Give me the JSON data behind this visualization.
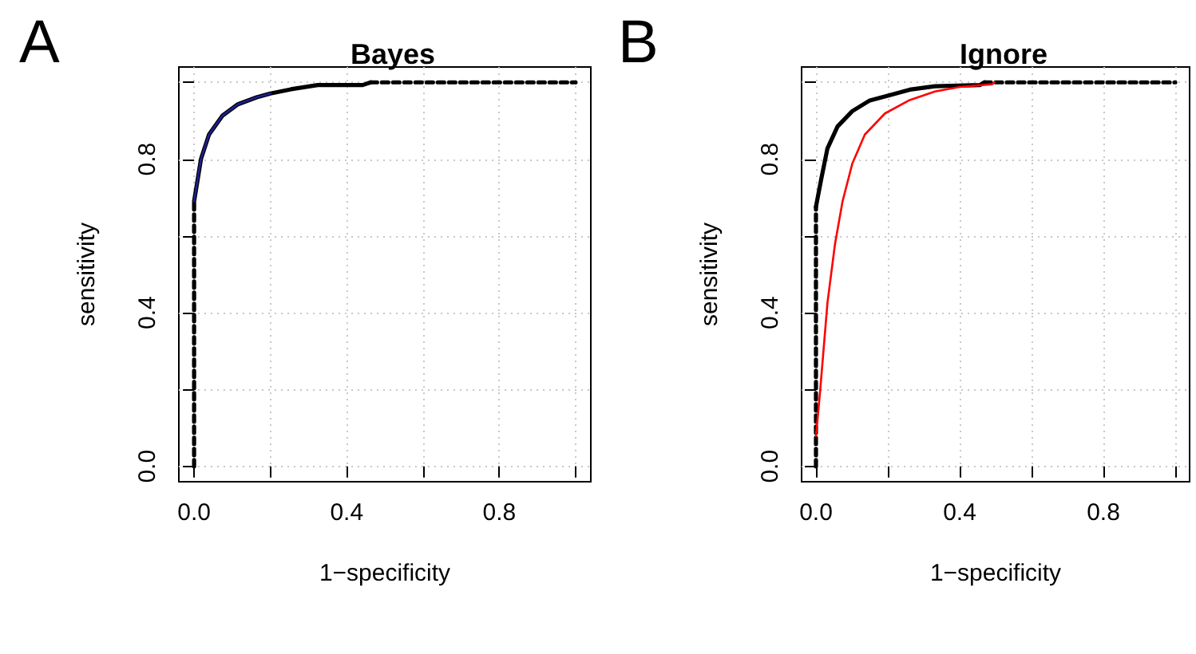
{
  "chart_data": [
    {
      "type": "line",
      "title": "Bayes",
      "xlabel": "1−specificity",
      "ylabel": "sensitivity",
      "annotations": [
        "A"
      ],
      "xlim": [
        -0.04,
        1.04
      ],
      "ylim": [
        -0.04,
        1.04
      ],
      "xticks": [
        {
          "value": 0,
          "label": "0.0"
        },
        {
          "value": 0.2,
          "label": null
        },
        {
          "value": 0.4,
          "label": "0.4"
        },
        {
          "value": 0.6,
          "label": null
        },
        {
          "value": 0.8,
          "label": "0.8"
        },
        {
          "value": 1,
          "label": null
        }
      ],
      "yticks": [
        {
          "value": 0,
          "label": "0.0"
        },
        {
          "value": 0.2,
          "label": null
        },
        {
          "value": 0.4,
          "label": "0.4"
        },
        {
          "value": 0.6,
          "label": null
        },
        {
          "value": 0.8,
          "label": "0.8"
        },
        {
          "value": 1,
          "label": null
        }
      ],
      "grid": true,
      "series": [
        {
          "color": "#000000",
          "line_style": "dashed",
          "x": [
            0,
            0
          ],
          "values": [
            0,
            0.69
          ]
        },
        {
          "color": "#000000",
          "line_style": "solid",
          "x": [
            0,
            0.018,
            0.039,
            0.074,
            0.115,
            0.164,
            0.2,
            0.254,
            0.324,
            0.442,
            0.463
          ],
          "values": [
            0.69,
            0.8,
            0.864,
            0.913,
            0.943,
            0.961,
            0.971,
            0.982,
            0.993,
            0.993,
            1
          ]
        },
        {
          "color": "#000000",
          "line_style": "dashed",
          "x": [
            0.463,
            1
          ],
          "values": [
            1,
            1
          ]
        },
        {
          "color": "#1f1f8f",
          "line_style": "solid",
          "x": [
            0,
            0.018,
            0.039,
            0.074,
            0.115,
            0.164,
            0.2
          ],
          "values": [
            0.69,
            0.8,
            0.864,
            0.913,
            0.943,
            0.961,
            0.971
          ]
        }
      ]
    },
    {
      "type": "line",
      "title": "Ignore",
      "xlabel": "1−specificity",
      "ylabel": "sensitivity",
      "annotations": [
        "B"
      ],
      "xlim": [
        -0.04,
        1.04
      ],
      "ylim": [
        -0.04,
        1.04
      ],
      "xticks": [
        {
          "value": 0,
          "label": "0.0"
        },
        {
          "value": 0.2,
          "label": null
        },
        {
          "value": 0.4,
          "label": "0.4"
        },
        {
          "value": 0.6,
          "label": null
        },
        {
          "value": 0.8,
          "label": "0.8"
        },
        {
          "value": 1,
          "label": null
        }
      ],
      "yticks": [
        {
          "value": 0,
          "label": "0.0"
        },
        {
          "value": 0.2,
          "label": null
        },
        {
          "value": 0.4,
          "label": "0.4"
        },
        {
          "value": 0.6,
          "label": null
        },
        {
          "value": 0.8,
          "label": "0.8"
        },
        {
          "value": 1,
          "label": null
        }
      ],
      "grid": true,
      "series": [
        {
          "color": "#000000",
          "line_style": "dashed",
          "x": [
            0,
            0
          ],
          "values": [
            0,
            0.676
          ]
        },
        {
          "color": "#000000",
          "line_style": "solid",
          "x": [
            0,
            0.014,
            0.032,
            0.06,
            0.101,
            0.15,
            0.206,
            0.261,
            0.331,
            0.456,
            0.469
          ],
          "values": [
            0.676,
            0.745,
            0.828,
            0.885,
            0.925,
            0.953,
            0.967,
            0.981,
            0.99,
            0.993,
            1
          ]
        },
        {
          "color": "#000000",
          "line_style": "dashed",
          "x": [
            0.469,
            1
          ],
          "values": [
            1,
            1
          ]
        },
        {
          "color": "#ff0000",
          "line_style": "solid",
          "x": [
            0,
            0.011,
            0.032,
            0.053,
            0.074,
            0.101,
            0.136,
            0.192,
            0.261,
            0.331,
            0.4,
            0.49,
            0.497
          ],
          "values": [
            0.079,
            0.19,
            0.426,
            0.579,
            0.69,
            0.788,
            0.864,
            0.919,
            0.954,
            0.976,
            0.988,
            0.995,
            1
          ]
        }
      ]
    }
  ]
}
